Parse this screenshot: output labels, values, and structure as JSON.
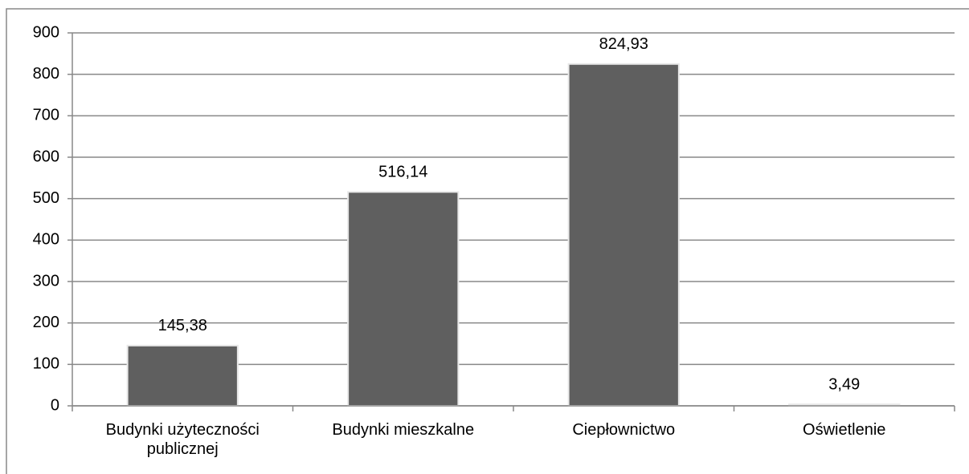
{
  "chart_data": {
    "type": "bar",
    "categories": [
      "Budynki użyteczności publicznej",
      "Budynki mieszkalne",
      "Ciepłownictwo",
      "Oświetlenie"
    ],
    "values": [
      145.38,
      516.14,
      824.93,
      3.49
    ],
    "value_labels": [
      "145,38",
      "516,14",
      "824,93",
      "3,49"
    ],
    "color": "#5f5f5f",
    "ylim": [
      0,
      900
    ],
    "yticks": [
      0,
      100,
      200,
      300,
      400,
      500,
      600,
      700,
      800,
      900
    ],
    "grid": true
  }
}
